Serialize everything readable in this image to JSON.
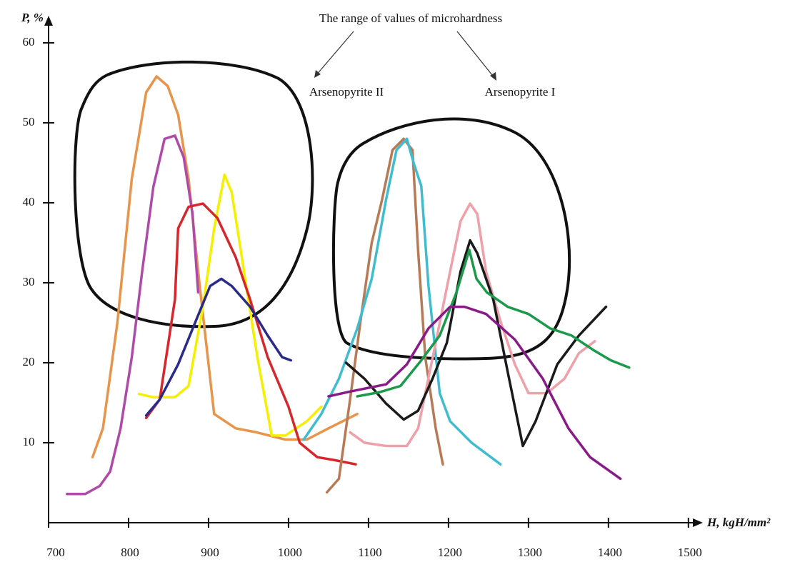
{
  "chart_data": {
    "type": "line",
    "annotations": {
      "range_title": "The range of values of microhardness",
      "group_a": "Arsenopyrite II",
      "group_b": "Arsenopyrite I"
    },
    "ylabel": "P, %",
    "xlabel": "H, kgH/mm²",
    "xlim": [
      700,
      1510
    ],
    "xticks": [
      700,
      800,
      900,
      1000,
      1100,
      1200,
      1300,
      1400,
      1500
    ],
    "ylim": [
      0,
      62
    ],
    "yticks": [
      10,
      20,
      30,
      40,
      50,
      60
    ],
    "series": [
      {
        "color": "#e8944a",
        "x": [
          755,
          768,
          786,
          804,
          822,
          835,
          849,
          862,
          875,
          889,
          907,
          934,
          960,
          996,
          1023,
          1050,
          1086
        ],
        "values": [
          8.2,
          11.8,
          25,
          43,
          53.8,
          55.8,
          54.6,
          51,
          43,
          29.6,
          13.6,
          11.8,
          11.3,
          10.4,
          10.4,
          11.8,
          13.6
        ]
      },
      {
        "color": "#b04aa8",
        "x": [
          723,
          746,
          764,
          777,
          790,
          804,
          817,
          831,
          845,
          858,
          869,
          880,
          887
        ],
        "values": [
          3.6,
          3.6,
          4.6,
          6.4,
          11.8,
          20.7,
          31.4,
          42,
          48,
          48.4,
          45.7,
          38.6,
          28.8
        ]
      },
      {
        "color": "#f5f000",
        "x": [
          813,
          831,
          858,
          875,
          893,
          907,
          920,
          929,
          943,
          961,
          979,
          996,
          1023,
          1041
        ],
        "values": [
          16.1,
          15.7,
          15.7,
          17.1,
          27,
          36.8,
          43.5,
          41.3,
          32.3,
          20.7,
          10.9,
          10.9,
          12.7,
          14.5
        ]
      },
      {
        "color": "#d8262a",
        "x": [
          822,
          839,
          858,
          862,
          875,
          893,
          911,
          934,
          952,
          974,
          1000,
          1014,
          1036,
          1059,
          1084
        ],
        "values": [
          13.1,
          15.4,
          27.9,
          36.8,
          39.5,
          39.9,
          38.1,
          33.2,
          27.9,
          20.7,
          14.5,
          10,
          8.2,
          7.8,
          7.3
        ]
      },
      {
        "color": "#2a2a8a",
        "x": [
          822,
          839,
          862,
          884,
          902,
          916,
          929,
          952,
          974,
          992,
          1003
        ],
        "values": [
          13.4,
          15.4,
          19.8,
          25.2,
          29.6,
          30.5,
          29.6,
          27,
          23.4,
          20.7,
          20.3
        ]
      },
      {
        "color": "#b87a55",
        "x": [
          1048,
          1063,
          1077,
          1090,
          1104,
          1117,
          1130,
          1144,
          1155,
          1162,
          1171,
          1184,
          1193
        ],
        "values": [
          3.8,
          5.5,
          15.4,
          25.2,
          35,
          40.4,
          46.6,
          48,
          46.6,
          34.1,
          20.7,
          11.8,
          7.3
        ]
      },
      {
        "color": "#40bcd0",
        "x": [
          1019,
          1041,
          1063,
          1086,
          1104,
          1122,
          1135,
          1148,
          1157,
          1166,
          1175,
          1189,
          1202,
          1229,
          1265
        ],
        "values": [
          10.4,
          13.6,
          18,
          24.3,
          30.5,
          40.4,
          46.6,
          48,
          44.8,
          42.1,
          29.6,
          16.2,
          12.7,
          10,
          7.3
        ]
      },
      {
        "color": "#f0a0a8",
        "x": [
          1077,
          1095,
          1122,
          1148,
          1162,
          1184,
          1202,
          1215,
          1227,
          1236,
          1247,
          1265,
          1283,
          1300,
          1323,
          1345,
          1363,
          1383
        ],
        "values": [
          11.3,
          10,
          9.6,
          9.6,
          11.8,
          22.5,
          31.4,
          37.7,
          39.9,
          38.6,
          31.4,
          25.2,
          19.8,
          16.2,
          16.2,
          18,
          21.2,
          22.7
        ]
      },
      {
        "color": "#1a1a1a",
        "x": [
          1072,
          1095,
          1122,
          1144,
          1162,
          1180,
          1198,
          1215,
          1227,
          1236,
          1256,
          1274,
          1293,
          1309,
          1336,
          1363,
          1397
        ],
        "values": [
          20,
          18,
          14.9,
          12.9,
          14,
          18,
          22.5,
          31.4,
          35.3,
          33.7,
          27.9,
          18.9,
          9.6,
          12.7,
          19.8,
          23.4,
          27
        ]
      },
      {
        "color": "#1a9a4a",
        "x": [
          1086,
          1113,
          1140,
          1166,
          1189,
          1210,
          1226,
          1235,
          1248,
          1274,
          1300,
          1327,
          1354,
          1381,
          1403,
          1426
        ],
        "values": [
          15.8,
          16.3,
          17.1,
          20.3,
          23.4,
          28.8,
          34.1,
          30.5,
          28.8,
          27,
          26.1,
          24.3,
          23.4,
          21.6,
          20.3,
          19.4
        ]
      },
      {
        "color": "#8a1a88",
        "x": [
          1050,
          1077,
          1122,
          1148,
          1175,
          1202,
          1220,
          1247,
          1283,
          1318,
          1350,
          1377,
          1415
        ],
        "values": [
          15.8,
          16.4,
          17.3,
          19.8,
          24.3,
          27,
          27,
          26.1,
          22.9,
          18,
          11.8,
          8.2,
          5.5
        ]
      }
    ]
  }
}
